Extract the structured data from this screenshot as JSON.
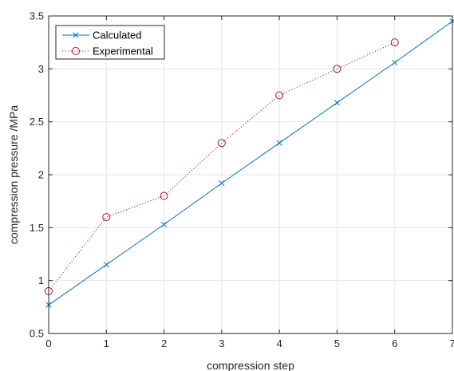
{
  "chart_data": {
    "type": "line",
    "xlabel": "compression step",
    "ylabel": "compression pressure /MPa",
    "xlim": [
      0,
      7
    ],
    "ylim": [
      0.5,
      3.5
    ],
    "xticks": [
      0,
      1,
      2,
      3,
      4,
      5,
      6,
      7
    ],
    "yticks": [
      0.5,
      1,
      1.5,
      2,
      2.5,
      3,
      3.5
    ],
    "xtick_labels": [
      "0",
      "1",
      "2",
      "3",
      "4",
      "5",
      "6",
      "7"
    ],
    "ytick_labels": [
      "0.5",
      "1",
      "1.5",
      "2",
      "2.5",
      "3",
      "3.5"
    ],
    "grid": true,
    "legend_position": "top-left",
    "series": [
      {
        "name": "Calculated",
        "x": [
          0,
          1,
          2,
          3,
          4,
          5,
          6,
          7
        ],
        "y": [
          0.77,
          1.15,
          1.53,
          1.92,
          2.3,
          2.68,
          3.06,
          3.45
        ],
        "color": "#0072BD",
        "line_style": "solid",
        "marker": "x"
      },
      {
        "name": "Experimental",
        "x": [
          0,
          1,
          2,
          3,
          4,
          5,
          6
        ],
        "y": [
          0.9,
          1.6,
          1.8,
          2.3,
          2.75,
          3.0,
          3.25
        ],
        "color": "#A2142F",
        "line_style": "dotted",
        "marker": "circle"
      }
    ]
  }
}
